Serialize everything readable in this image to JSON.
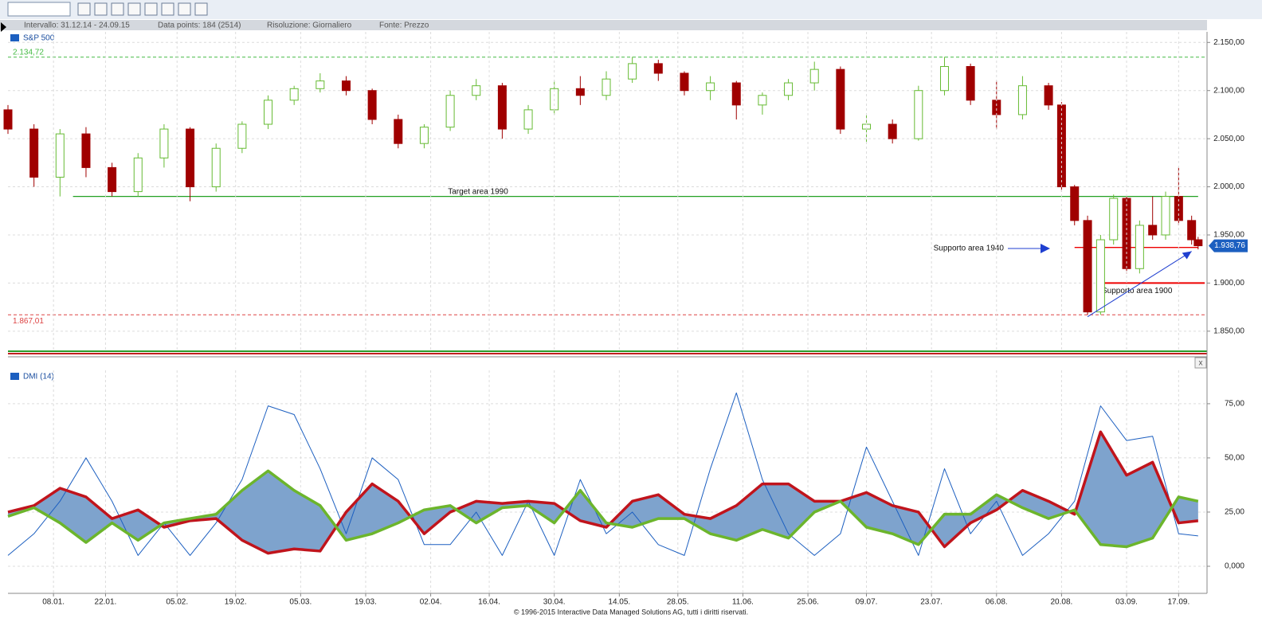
{
  "info": {
    "interval": "Intervallo:  31.12.14 - 24.09.15",
    "points": "Data points:  184 (2514)",
    "resolution": "Risoluzione:  Giornaliero",
    "source": "Fonte:  Prezzo"
  },
  "footer": "© 1996-2015 Interactive Data Managed Solutions AG, tutti i diritti riservati.",
  "chart_data": [
    {
      "type": "candlestick",
      "title": "S&P 500",
      "x": [
        0,
        4,
        8,
        12,
        16,
        20,
        24,
        28,
        32,
        36,
        40,
        44,
        48,
        52,
        56,
        60,
        64,
        68,
        72,
        76,
        80,
        84,
        88,
        92,
        96,
        100,
        104,
        108,
        112,
        116,
        120,
        124,
        128,
        132,
        136,
        140,
        144,
        148,
        152,
        156,
        160,
        162,
        164,
        166,
        168,
        170,
        172,
        174,
        176,
        178,
        180,
        182,
        183
      ],
      "open": [
        2080,
        2060,
        2010,
        2055,
        2020,
        1995,
        2030,
        2060,
        2000,
        2040,
        2065,
        2090,
        2102,
        2110,
        2100,
        2070,
        2045,
        2062,
        2095,
        2105,
        2060,
        2080,
        2102,
        2095,
        2112,
        2128,
        2118,
        2100,
        2108,
        2085,
        2095,
        2108,
        2122,
        2060,
        2065,
        2050,
        2100,
        2125,
        2090,
        2075,
        2105,
        2085,
        2000,
        1965,
        1870,
        1945,
        1988,
        1915,
        1960,
        1950,
        1990,
        1965,
        1945
      ],
      "high": [
        2085,
        2065,
        2060,
        2062,
        2025,
        2035,
        2065,
        2062,
        2045,
        2068,
        2095,
        2105,
        2118,
        2115,
        2102,
        2075,
        2065,
        2100,
        2112,
        2108,
        2085,
        2110,
        2115,
        2120,
        2135,
        2132,
        2120,
        2115,
        2110,
        2098,
        2112,
        2130,
        2125,
        2075,
        2070,
        2105,
        2135,
        2128,
        2110,
        2115,
        2108,
        2088,
        2002,
        1970,
        1950,
        1992,
        1990,
        1965,
        1990,
        1995,
        2020,
        1970,
        1948
      ],
      "low": [
        2055,
        2000,
        1990,
        2010,
        1990,
        1990,
        2020,
        1985,
        1995,
        2035,
        2060,
        2085,
        2098,
        2095,
        2065,
        2040,
        2040,
        2058,
        2090,
        2050,
        2055,
        2075,
        2085,
        2090,
        2108,
        2110,
        2095,
        2090,
        2070,
        2075,
        2090,
        2100,
        2055,
        2045,
        2045,
        2048,
        2095,
        2085,
        2060,
        2070,
        2080,
        1995,
        1960,
        1867.01,
        1867,
        1940,
        1910,
        1910,
        1945,
        1945,
        1960,
        1940,
        1935
      ],
      "close": [
        2060,
        2010,
        2055,
        2020,
        1995,
        2030,
        2060,
        2000,
        2040,
        2065,
        2090,
        2102,
        2110,
        2100,
        2070,
        2045,
        2062,
        2095,
        2105,
        2060,
        2080,
        2102,
        2095,
        2112,
        2128,
        2118,
        2100,
        2108,
        2085,
        2095,
        2108,
        2122,
        2060,
        2065,
        2050,
        2100,
        2125,
        2090,
        2075,
        2105,
        2085,
        2000,
        1965,
        1870,
        1945,
        1988,
        1915,
        1960,
        1950,
        1990,
        1965,
        1945,
        1938.76
      ],
      "up_color": "#66bb33",
      "down_color": "#a00000",
      "xlim": [
        0,
        184
      ],
      "ylim": [
        1830,
        2161
      ],
      "yticks": [
        {
          "value": 1850,
          "label": "1.850,00"
        },
        {
          "value": 1900,
          "label": "1.900,00"
        },
        {
          "value": 1950,
          "label": "1.950,00"
        },
        {
          "value": 2000,
          "label": "2.000,00"
        },
        {
          "value": 2050,
          "label": "2.050,00"
        },
        {
          "value": 2100,
          "label": "2.100,00"
        },
        {
          "value": 2150,
          "label": "2.150,00"
        }
      ],
      "grid": true,
      "levels": [
        {
          "value": 2134.72,
          "label": "2.134,72",
          "color": "#44bb44"
        },
        {
          "value": 1867.01,
          "label": "1.867,01",
          "color": "#dd4444"
        }
      ],
      "lines": [
        {
          "text": "Target area 1990",
          "value": 1990,
          "x": [
            10,
            183
          ],
          "color": "#22a022"
        },
        {
          "text": "Supporto area 1900",
          "value": 1900,
          "x": [
            168,
            184
          ],
          "color": "#ee0000"
        },
        {
          "text": "Supporto area 1940",
          "value": 1937,
          "x": [
            164,
            183
          ],
          "color": "#ee0000"
        }
      ],
      "trend": {
        "x": [
          166,
          182
        ],
        "y": [
          1865,
          1933
        ],
        "color": "#1f3fd0"
      },
      "last": {
        "value": 1938.76,
        "label": "1.938,76"
      }
    },
    {
      "type": "dmi",
      "title": "DMI (14)",
      "x": [
        0,
        4,
        8,
        12,
        16,
        20,
        24,
        28,
        32,
        36,
        40,
        44,
        48,
        52,
        56,
        60,
        64,
        68,
        72,
        76,
        80,
        84,
        88,
        92,
        96,
        100,
        104,
        108,
        112,
        116,
        120,
        124,
        128,
        132,
        136,
        140,
        144,
        148,
        152,
        156,
        160,
        164,
        168,
        172,
        176,
        180,
        183
      ],
      "series": [
        {
          "color": "#c0141c",
          "values": [
            25,
            28,
            36,
            32,
            22,
            26,
            18,
            21,
            22,
            12,
            6,
            8,
            7,
            25,
            38,
            30,
            15,
            25,
            30,
            29,
            30,
            29,
            21,
            18,
            30,
            33,
            24,
            22,
            28,
            38,
            38,
            30,
            30,
            34,
            28,
            25,
            9,
            20,
            26,
            35,
            30,
            24,
            62,
            42,
            48,
            20,
            21
          ]
        },
        {
          "color": "#6cb52c",
          "values": [
            23,
            27,
            20,
            11,
            20,
            12,
            20,
            22,
            24,
            35,
            44,
            35,
            28,
            12,
            15,
            20,
            26,
            28,
            20,
            27,
            28,
            20,
            35,
            20,
            18,
            22,
            22,
            15,
            12,
            17,
            13,
            25,
            30,
            18,
            15,
            10,
            24,
            24,
            33,
            27,
            22,
            26,
            10,
            9,
            13,
            32,
            30
          ]
        },
        {
          "color": "#1c5fc0",
          "values": [
            5,
            15,
            30,
            50,
            30,
            5,
            20,
            5,
            20,
            40,
            74,
            70,
            45,
            15,
            50,
            40,
            10,
            10,
            25,
            5,
            30,
            5,
            40,
            15,
            25,
            10,
            5,
            45,
            80,
            40,
            15,
            5,
            15,
            55,
            30,
            5,
            45,
            15,
            30,
            5,
            15,
            30,
            74,
            58,
            60,
            15,
            14
          ]
        }
      ],
      "fill_color": "#7ea3cd",
      "xlim": [
        0,
        184
      ],
      "ylim": [
        -12.5,
        90.4
      ],
      "yticks": [
        {
          "value": 0,
          "label": "0,000"
        },
        {
          "value": 25,
          "label": "25,00"
        },
        {
          "value": 50,
          "label": "50,00"
        },
        {
          "value": 75,
          "label": "75,00"
        }
      ],
      "xticks": [
        {
          "value": 7,
          "label": "08.01."
        },
        {
          "value": 15,
          "label": "22.01."
        },
        {
          "value": 26,
          "label": "05.02."
        },
        {
          "value": 35,
          "label": "19.02."
        },
        {
          "value": 45,
          "label": "05.03."
        },
        {
          "value": 55,
          "label": "19.03."
        },
        {
          "value": 65,
          "label": "02.04."
        },
        {
          "value": 74,
          "label": "16.04."
        },
        {
          "value": 84,
          "label": "30.04."
        },
        {
          "value": 94,
          "label": "14.05."
        },
        {
          "value": 103,
          "label": "28.05."
        },
        {
          "value": 113,
          "label": "11.06."
        },
        {
          "value": 123,
          "label": "25.06."
        },
        {
          "value": 132,
          "label": "09.07."
        },
        {
          "value": 142,
          "label": "23.07."
        },
        {
          "value": 152,
          "label": "06.08."
        },
        {
          "value": 162,
          "label": "20.08."
        },
        {
          "value": 172,
          "label": "03.09."
        },
        {
          "value": 180,
          "label": "17.09."
        }
      ],
      "grid": true
    }
  ]
}
